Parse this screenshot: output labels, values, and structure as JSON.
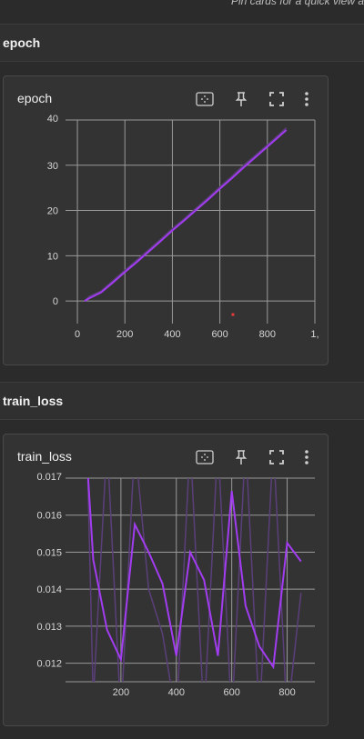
{
  "top_hint": "Pin cards for a quick view a",
  "sections": [
    {
      "title": "epoch",
      "card_title": "epoch",
      "chart": {
        "type": "line",
        "x_ticks": [
          "0",
          "200",
          "400",
          "600",
          "800",
          "1,"
        ],
        "y_ticks": [
          "0",
          "10",
          "20",
          "30"
        ],
        "y_top_cut": "40",
        "xlim": [
          -50,
          1000
        ],
        "ylim": [
          -5,
          40
        ],
        "raw_series": {
          "x": [
            30,
            50,
            100,
            150,
            200,
            250,
            300,
            350,
            400,
            450,
            500,
            550,
            600,
            650,
            700,
            750,
            800,
            850,
            880
          ],
          "y": [
            0,
            1,
            2.2,
            4.5,
            6.8,
            9,
            11.3,
            13.6,
            16,
            18.2,
            20.5,
            22.8,
            25.2,
            27.5,
            30,
            32.2,
            34.5,
            36.8,
            38.3
          ]
        },
        "smoothed_series": {
          "x": [
            30,
            50,
            100,
            150,
            200,
            250,
            300,
            350,
            400,
            450,
            500,
            550,
            600,
            650,
            700,
            750,
            800,
            850,
            880
          ],
          "y": [
            0,
            0.6,
            1.9,
            4.1,
            6.4,
            8.6,
            10.9,
            13.2,
            15.6,
            17.8,
            20.1,
            22.4,
            24.8,
            27.1,
            29.5,
            31.8,
            34.1,
            36.4,
            37.8
          ]
        },
        "outlier": {
          "x": 655,
          "y": -3
        }
      }
    },
    {
      "title": "train_loss",
      "card_title": "train_loss",
      "chart": {
        "type": "line",
        "x_ticks": [
          "200",
          "400",
          "600",
          "800"
        ],
        "y_ticks": [
          "0.012",
          "0.013",
          "0.014",
          "0.015",
          "0.016"
        ],
        "y_top_cut": "0.017",
        "xlim": [
          0,
          900
        ],
        "ylim": [
          0.0115,
          0.017
        ],
        "smoothed_series": {
          "x": [
            80,
            100,
            150,
            200,
            250,
            300,
            350,
            400,
            450,
            500,
            550,
            600,
            650,
            700,
            750,
            800,
            850
          ],
          "y": [
            0.0172,
            0.0148,
            0.0129,
            0.0121,
            0.01575,
            0.015,
            0.01415,
            0.0122,
            0.015,
            0.01425,
            0.0122,
            0.01665,
            0.01355,
            0.01245,
            0.0119,
            0.01525,
            0.01475
          ]
        },
        "raw_series": {
          "x": [
            80,
            100,
            150,
            200,
            250,
            300,
            350,
            400,
            450,
            500,
            550,
            600,
            650,
            700,
            750,
            800,
            850
          ],
          "y": [
            0.0172,
            0.011,
            0.018,
            0.0105,
            0.018,
            0.014,
            0.0128,
            0.0105,
            0.018,
            0.0105,
            0.018,
            0.0105,
            0.018,
            0.0105,
            0.018,
            0.0105,
            0.0139
          ]
        }
      }
    }
  ],
  "icons": [
    "fit-domain-icon",
    "pin-icon",
    "fullscreen-icon",
    "more-vert-icon"
  ],
  "colors": {
    "smoothed": "#a23cf0",
    "raw": "#5b3f7a",
    "grid": "#9a9a9a",
    "outlier": "#e23b3b"
  }
}
